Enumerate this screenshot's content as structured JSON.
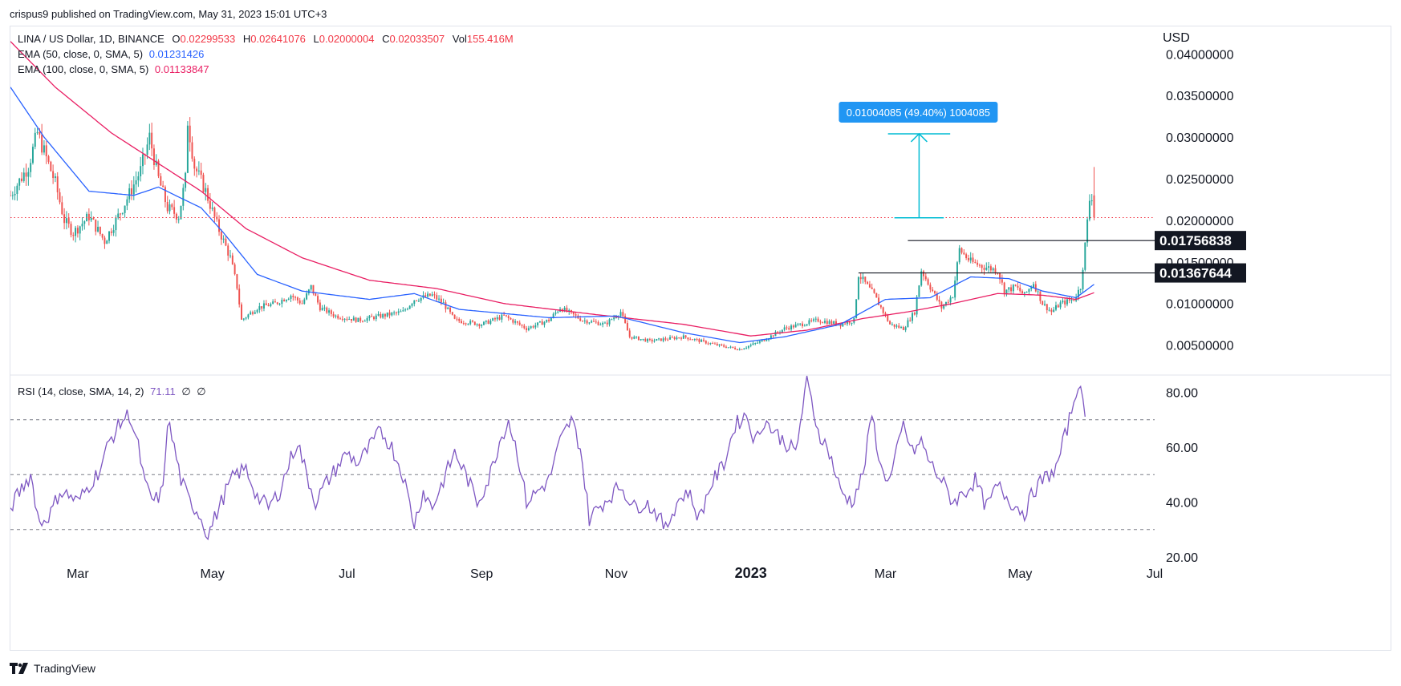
{
  "meta": {
    "published": "crispus9 published on TradingView.com, May 31, 2023 15:01 UTC+3"
  },
  "header": {
    "symbol": "LINA / US Dollar, 1D, BINANCE",
    "ohlc": {
      "open_label": "O",
      "open": "0.02299533",
      "high_label": "H",
      "high": "0.02641076",
      "low_label": "L",
      "low": "0.02000004",
      "close_label": "C",
      "close": "0.02033507",
      "vol_label": "Vol",
      "vol": "155.416M"
    },
    "ema50_label": "EMA (50, close, 0, SMA, 5)",
    "ema50_value": "0.01231426",
    "ema100_label": "EMA (100, close, 0, SMA, 5)",
    "ema100_value": "0.01133847",
    "rsi_label": "RSI (14, close, SMA, 14, 2)",
    "rsi_value": "71.11",
    "rsi_extra1": "∅",
    "rsi_extra2": "∅"
  },
  "currency": "USD",
  "brand": {
    "name": "TradingView"
  },
  "colors": {
    "up": "#26a69a",
    "down": "#ef5350",
    "ema50": "#2962ff",
    "ema100": "#e91e63",
    "rsi": "#7e57c2",
    "measure": "#00bcd4",
    "measure_label_bg": "#2196f3",
    "last_price_line": "#f23645"
  },
  "annotations": {
    "measure_label": "0.01004085 (49.40%) 1004085",
    "level_high": "0.01756838",
    "level_low": "0.01367644"
  },
  "chart_data": {
    "type": "candlestick",
    "price_axis": {
      "ticks": [
        "0.04000000",
        "0.03500000",
        "0.03000000",
        "0.02500000",
        "0.02000000",
        "0.01500000",
        "0.01000000",
        "0.00500000"
      ],
      "tick_values": [
        0.04,
        0.035,
        0.03,
        0.025,
        0.02,
        0.015,
        0.01,
        0.005
      ],
      "ylim": [
        0.0015,
        0.0433
      ]
    },
    "rsi_axis": {
      "ticks": [
        "80.00",
        "60.00",
        "40.00",
        "20.00"
      ],
      "tick_values": [
        80,
        60,
        40,
        20
      ],
      "ylim": [
        20,
        86
      ],
      "bands": [
        70,
        50,
        30
      ]
    },
    "time_axis": {
      "labels": [
        "Mar",
        "May",
        "Jul",
        "Sep",
        "Nov",
        "2023",
        "Mar",
        "May",
        "Jul"
      ],
      "label_bars": [
        30,
        90,
        150,
        210,
        270,
        330,
        390,
        450,
        510
      ],
      "bold": [
        false,
        false,
        false,
        false,
        false,
        true,
        false,
        false,
        false
      ],
      "total_bars": 510
    },
    "close_anchors": [
      [
        0,
        0.023
      ],
      [
        8,
        0.0265
      ],
      [
        12,
        0.0305
      ],
      [
        20,
        0.0245
      ],
      [
        24,
        0.02
      ],
      [
        28,
        0.0185
      ],
      [
        35,
        0.0205
      ],
      [
        42,
        0.0175
      ],
      [
        50,
        0.0215
      ],
      [
        58,
        0.026
      ],
      [
        62,
        0.03
      ],
      [
        66,
        0.025
      ],
      [
        70,
        0.0215
      ],
      [
        75,
        0.0205
      ],
      [
        78,
        0.025
      ],
      [
        79,
        0.032
      ],
      [
        82,
        0.0265
      ],
      [
        87,
        0.0235
      ],
      [
        92,
        0.0195
      ],
      [
        98,
        0.0155
      ],
      [
        101,
        0.012
      ],
      [
        103,
        0.008
      ],
      [
        110,
        0.0095
      ],
      [
        118,
        0.01
      ],
      [
        125,
        0.011
      ],
      [
        130,
        0.01
      ],
      [
        134,
        0.012
      ],
      [
        138,
        0.0095
      ],
      [
        145,
        0.0085
      ],
      [
        155,
        0.008
      ],
      [
        165,
        0.0085
      ],
      [
        175,
        0.009
      ],
      [
        180,
        0.0105
      ],
      [
        188,
        0.011
      ],
      [
        193,
        0.01
      ],
      [
        198,
        0.008
      ],
      [
        210,
        0.0075
      ],
      [
        220,
        0.0085
      ],
      [
        230,
        0.007
      ],
      [
        240,
        0.008
      ],
      [
        245,
        0.0095
      ],
      [
        255,
        0.008
      ],
      [
        265,
        0.0075
      ],
      [
        272,
        0.009
      ],
      [
        276,
        0.006
      ],
      [
        285,
        0.0055
      ],
      [
        300,
        0.006
      ],
      [
        315,
        0.005
      ],
      [
        325,
        0.0045
      ],
      [
        335,
        0.0055
      ],
      [
        345,
        0.007
      ],
      [
        360,
        0.008
      ],
      [
        370,
        0.0075
      ],
      [
        376,
        0.008
      ],
      [
        378,
        0.0135
      ],
      [
        385,
        0.011
      ],
      [
        392,
        0.0075
      ],
      [
        398,
        0.007
      ],
      [
        403,
        0.009
      ],
      [
        406,
        0.014
      ],
      [
        410,
        0.012
      ],
      [
        415,
        0.0095
      ],
      [
        420,
        0.011
      ],
      [
        423,
        0.0165
      ],
      [
        428,
        0.015
      ],
      [
        433,
        0.0145
      ],
      [
        440,
        0.014
      ],
      [
        443,
        0.0115
      ],
      [
        448,
        0.012
      ],
      [
        452,
        0.011
      ],
      [
        456,
        0.0125
      ],
      [
        460,
        0.01
      ],
      [
        464,
        0.009
      ],
      [
        468,
        0.01
      ],
      [
        474,
        0.0105
      ],
      [
        477,
        0.012
      ],
      [
        479,
        0.017
      ],
      [
        481,
        0.0225
      ],
      [
        482,
        0.023
      ],
      [
        483,
        0.0203
      ]
    ],
    "rsi_anchors": [
      [
        0,
        38
      ],
      [
        5,
        45
      ],
      [
        9,
        50
      ],
      [
        13,
        32
      ],
      [
        18,
        36
      ],
      [
        22,
        44
      ],
      [
        27,
        42
      ],
      [
        30,
        40
      ],
      [
        35,
        46
      ],
      [
        40,
        52
      ],
      [
        44,
        62
      ],
      [
        50,
        70
      ],
      [
        53,
        72
      ],
      [
        57,
        60
      ],
      [
        60,
        46
      ],
      [
        64,
        40
      ],
      [
        68,
        44
      ],
      [
        70,
        70
      ],
      [
        73,
        60
      ],
      [
        76,
        48
      ],
      [
        80,
        40
      ],
      [
        84,
        36
      ],
      [
        88,
        28
      ],
      [
        92,
        36
      ],
      [
        96,
        44
      ],
      [
        100,
        50
      ],
      [
        105,
        52
      ],
      [
        110,
        42
      ],
      [
        115,
        38
      ],
      [
        120,
        44
      ],
      [
        125,
        56
      ],
      [
        128,
        62
      ],
      [
        132,
        50
      ],
      [
        136,
        40
      ],
      [
        140,
        46
      ],
      [
        145,
        52
      ],
      [
        150,
        58
      ],
      [
        155,
        54
      ],
      [
        160,
        60
      ],
      [
        165,
        66
      ],
      [
        170,
        60
      ],
      [
        175,
        50
      ],
      [
        180,
        32
      ],
      [
        184,
        44
      ],
      [
        188,
        38
      ],
      [
        193,
        48
      ],
      [
        198,
        58
      ],
      [
        203,
        50
      ],
      [
        208,
        40
      ],
      [
        213,
        48
      ],
      [
        218,
        62
      ],
      [
        222,
        70
      ],
      [
        226,
        58
      ],
      [
        230,
        40
      ],
      [
        235,
        44
      ],
      [
        240,
        48
      ],
      [
        245,
        62
      ],
      [
        250,
        70
      ],
      [
        254,
        60
      ],
      [
        258,
        34
      ],
      [
        262,
        38
      ],
      [
        267,
        42
      ],
      [
        272,
        46
      ],
      [
        278,
        38
      ],
      [
        283,
        40
      ],
      [
        288,
        36
      ],
      [
        292,
        30
      ],
      [
        297,
        40
      ],
      [
        302,
        44
      ],
      [
        307,
        34
      ],
      [
        312,
        46
      ],
      [
        318,
        54
      ],
      [
        323,
        68
      ],
      [
        328,
        72
      ],
      [
        332,
        62
      ],
      [
        336,
        70
      ],
      [
        340,
        66
      ],
      [
        345,
        62
      ],
      [
        350,
        58
      ],
      [
        355,
        84
      ],
      [
        360,
        66
      ],
      [
        365,
        58
      ],
      [
        370,
        44
      ],
      [
        375,
        40
      ],
      [
        380,
        50
      ],
      [
        384,
        72
      ],
      [
        388,
        52
      ],
      [
        392,
        48
      ],
      [
        398,
        68
      ],
      [
        402,
        58
      ],
      [
        406,
        62
      ],
      [
        410,
        54
      ],
      [
        415,
        48
      ],
      [
        420,
        40
      ],
      [
        426,
        44
      ],
      [
        430,
        48
      ],
      [
        435,
        38
      ],
      [
        440,
        46
      ],
      [
        446,
        40
      ],
      [
        452,
        36
      ],
      [
        456,
        44
      ],
      [
        460,
        48
      ],
      [
        466,
        52
      ],
      [
        472,
        70
      ],
      [
        476,
        84
      ],
      [
        479,
        71
      ]
    ],
    "ema50_anchors": [
      [
        0,
        0.036
      ],
      [
        15,
        0.03
      ],
      [
        35,
        0.0235
      ],
      [
        55,
        0.023
      ],
      [
        66,
        0.024
      ],
      [
        75,
        0.0228
      ],
      [
        85,
        0.0215
      ],
      [
        95,
        0.0185
      ],
      [
        110,
        0.0135
      ],
      [
        130,
        0.0115
      ],
      [
        160,
        0.0105
      ],
      [
        180,
        0.0112
      ],
      [
        200,
        0.0093
      ],
      [
        240,
        0.0083
      ],
      [
        270,
        0.0085
      ],
      [
        300,
        0.0065
      ],
      [
        325,
        0.0053
      ],
      [
        345,
        0.006
      ],
      [
        370,
        0.0075
      ],
      [
        390,
        0.0105
      ],
      [
        410,
        0.0107
      ],
      [
        428,
        0.0132
      ],
      [
        445,
        0.013
      ],
      [
        460,
        0.0115
      ],
      [
        475,
        0.0107
      ],
      [
        483,
        0.0123
      ]
    ],
    "ema100_anchors": [
      [
        0,
        0.0415
      ],
      [
        20,
        0.036
      ],
      [
        45,
        0.0305
      ],
      [
        65,
        0.027
      ],
      [
        85,
        0.0235
      ],
      [
        105,
        0.019
      ],
      [
        130,
        0.0155
      ],
      [
        160,
        0.0128
      ],
      [
        190,
        0.0118
      ],
      [
        220,
        0.01
      ],
      [
        260,
        0.0087
      ],
      [
        300,
        0.0075
      ],
      [
        330,
        0.0061
      ],
      [
        355,
        0.0068
      ],
      [
        380,
        0.0082
      ],
      [
        400,
        0.009
      ],
      [
        420,
        0.01
      ],
      [
        440,
        0.0112
      ],
      [
        460,
        0.011
      ],
      [
        475,
        0.0105
      ],
      [
        483,
        0.0113
      ]
    ],
    "last_price": 0.02033507,
    "measure": {
      "bar_from": 394,
      "bar_to": 416,
      "price_from": 0.0203,
      "price_to": 0.0304
    },
    "levels": [
      {
        "value": 0.01756838,
        "bar_from": 400
      },
      {
        "value": 0.01367644,
        "bar_from": 378
      }
    ]
  }
}
